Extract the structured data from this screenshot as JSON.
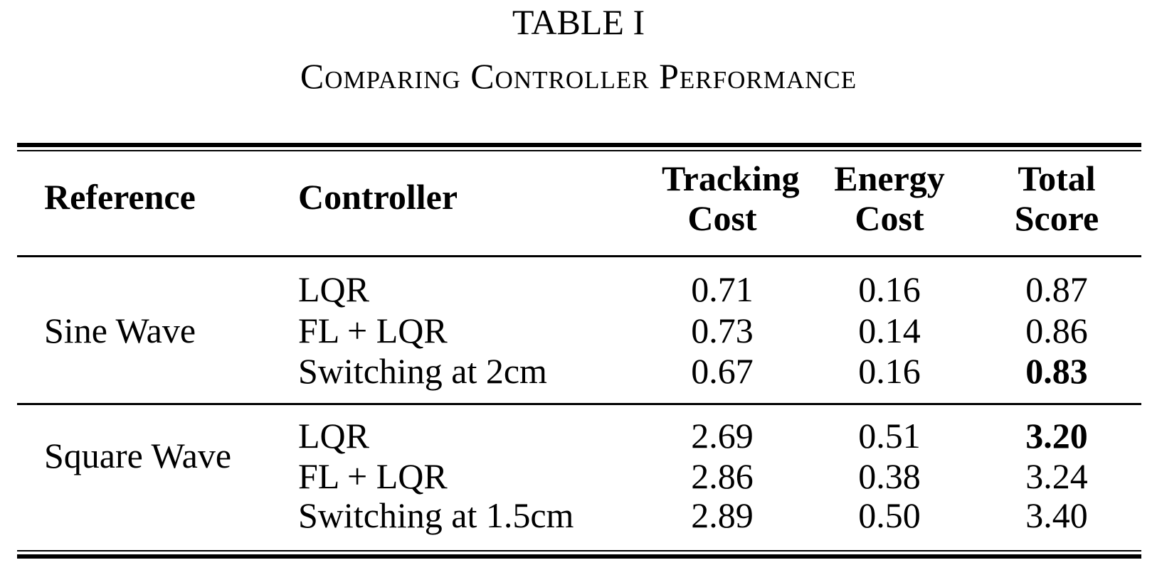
{
  "table_label": "TABLE I",
  "caption": "Comparing Controller Performance",
  "headers": {
    "reference": "Reference",
    "controller": "Controller",
    "tracking_line1": "Tracking",
    "tracking_line2": "Cost",
    "energy_line1": "Energy",
    "energy_line2": "Cost",
    "total_line1": "Total",
    "total_line2": "Score"
  },
  "groups": [
    {
      "reference": "Sine Wave",
      "rows": [
        {
          "controller": "LQR",
          "tracking": "0.71",
          "energy": "0.16",
          "total": "0.87"
        },
        {
          "controller": "FL + LQR",
          "tracking": "0.73",
          "energy": "0.14",
          "total": "0.86"
        },
        {
          "controller": "Switching at 2cm",
          "tracking": "0.67",
          "energy": "0.16",
          "total": "0.83"
        }
      ]
    },
    {
      "reference": "Square Wave",
      "rows": [
        {
          "controller": "LQR",
          "tracking": "2.69",
          "energy": "0.51",
          "total": "3.20"
        },
        {
          "controller": "FL + LQR",
          "tracking": "2.86",
          "energy": "0.38",
          "total": "3.24"
        },
        {
          "controller": "Switching at 1.5cm",
          "tracking": "2.89",
          "energy": "0.50",
          "total": "3.40"
        }
      ]
    }
  ]
}
